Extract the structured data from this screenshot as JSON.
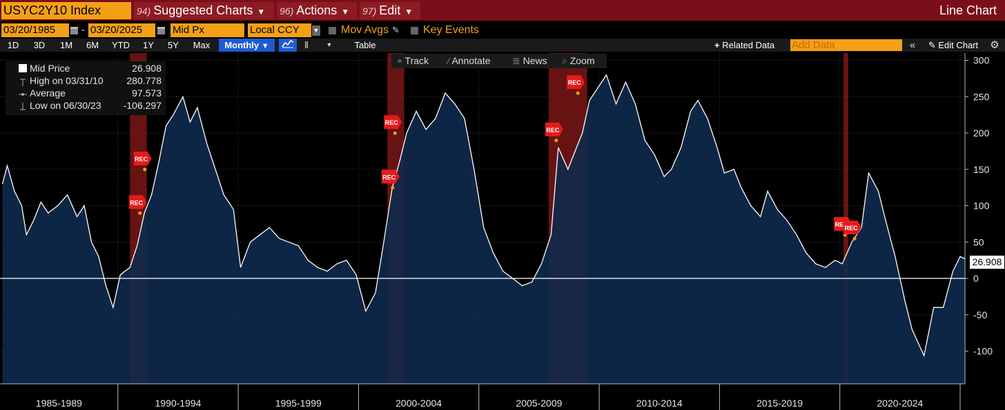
{
  "header": {
    "ticker": "USYC2Y10 Index",
    "menus": [
      {
        "num": "94)",
        "label": "Suggested Charts"
      },
      {
        "num": "96)",
        "label": "Actions"
      },
      {
        "num": "97)",
        "label": "Edit"
      }
    ],
    "view_title": "Line Chart"
  },
  "controls": {
    "start_date": "03/20/1985",
    "end_date": "03/20/2025",
    "date_separator": "-",
    "field": "Mid Px",
    "currency": "Local CCY",
    "mov_avgs_label": "Mov Avgs",
    "key_events_label": "Key Events"
  },
  "ranges": [
    "1D",
    "3D",
    "1M",
    "6M",
    "YTD",
    "1Y",
    "5Y",
    "Max"
  ],
  "frequency": "Monthly",
  "table_label": "Table",
  "related_data_label": "Related Data",
  "add_data_placeholder": "Add Data",
  "edit_chart_label": "Edit Chart",
  "chart_tools": [
    "Track",
    "Annotate",
    "News",
    "Zoom"
  ],
  "legend": {
    "rows": [
      {
        "name": "Mid Price",
        "value": "26.908"
      },
      {
        "name": "High on 03/31/10",
        "value": "280.778"
      },
      {
        "name": "Average",
        "value": "97.573"
      },
      {
        "name": "Low on 06/30/23",
        "value": "-106.297"
      }
    ]
  },
  "last_value_label": "26.908",
  "colors": {
    "accent": "#f3a017",
    "header_bg": "#7a0f19",
    "line": "#ffffff",
    "area": "#0f2a4c",
    "recession": "#8b1a1a",
    "active_button": "#1d5bd1"
  },
  "chart_data": {
    "type": "area",
    "title": "USYC2Y10 Index",
    "ylabel": "",
    "ylim": [
      -145,
      310
    ],
    "yticks": [
      -100,
      -50,
      0,
      50,
      100,
      150,
      200,
      250,
      300
    ],
    "xlim": [
      1985.1,
      2025.2
    ],
    "x_period_labels": [
      "1985-1989",
      "1990-1994",
      "1995-1999",
      "2000-2004",
      "2005-2009",
      "2010-2014",
      "2015-2019",
      "2020-2024"
    ],
    "x_period_boundaries": [
      1985.0,
      1990.0,
      1995.0,
      2000.0,
      2005.0,
      2010.0,
      2015.0,
      2020.0,
      2025.0
    ],
    "series": [
      {
        "values": [
          [
            1985.2,
            130
          ],
          [
            1985.4,
            155
          ],
          [
            1985.7,
            120
          ],
          [
            1986.0,
            100
          ],
          [
            1986.2,
            60
          ],
          [
            1986.5,
            80
          ],
          [
            1986.8,
            105
          ],
          [
            1987.1,
            90
          ],
          [
            1987.5,
            100
          ],
          [
            1987.9,
            115
          ],
          [
            1988.3,
            85
          ],
          [
            1988.6,
            100
          ],
          [
            1988.9,
            50
          ],
          [
            1989.2,
            30
          ],
          [
            1989.5,
            -10
          ],
          [
            1989.8,
            -40
          ],
          [
            1990.1,
            5
          ],
          [
            1990.5,
            15
          ],
          [
            1990.8,
            45
          ],
          [
            1991.1,
            90
          ],
          [
            1991.4,
            115
          ],
          [
            1991.7,
            160
          ],
          [
            1992.0,
            210
          ],
          [
            1992.3,
            225
          ],
          [
            1992.7,
            250
          ],
          [
            1993.0,
            215
          ],
          [
            1993.3,
            235
          ],
          [
            1993.7,
            185
          ],
          [
            1994.0,
            155
          ],
          [
            1994.4,
            115
          ],
          [
            1994.8,
            95
          ],
          [
            1995.1,
            15
          ],
          [
            1995.5,
            50
          ],
          [
            1995.9,
            60
          ],
          [
            1996.3,
            70
          ],
          [
            1996.7,
            55
          ],
          [
            1997.1,
            50
          ],
          [
            1997.5,
            45
          ],
          [
            1997.9,
            25
          ],
          [
            1998.3,
            15
          ],
          [
            1998.7,
            10
          ],
          [
            1999.1,
            20
          ],
          [
            1999.5,
            25
          ],
          [
            1999.9,
            5
          ],
          [
            2000.3,
            -45
          ],
          [
            2000.7,
            -20
          ],
          [
            2001.0,
            40
          ],
          [
            2001.4,
            125
          ],
          [
            2001.7,
            160
          ],
          [
            2002.0,
            200
          ],
          [
            2002.4,
            230
          ],
          [
            2002.8,
            205
          ],
          [
            2003.2,
            220
          ],
          [
            2003.6,
            255
          ],
          [
            2004.0,
            240
          ],
          [
            2004.4,
            220
          ],
          [
            2004.8,
            150
          ],
          [
            2005.2,
            70
          ],
          [
            2005.6,
            35
          ],
          [
            2006.0,
            10
          ],
          [
            2006.4,
            0
          ],
          [
            2006.8,
            -10
          ],
          [
            2007.2,
            -5
          ],
          [
            2007.6,
            20
          ],
          [
            2008.0,
            60
          ],
          [
            2008.3,
            180
          ],
          [
            2008.7,
            150
          ],
          [
            2009.0,
            175
          ],
          [
            2009.3,
            200
          ],
          [
            2009.6,
            245
          ],
          [
            2010.0,
            265
          ],
          [
            2010.3,
            280
          ],
          [
            2010.7,
            240
          ],
          [
            2011.1,
            270
          ],
          [
            2011.5,
            240
          ],
          [
            2011.9,
            190
          ],
          [
            2012.3,
            170
          ],
          [
            2012.7,
            140
          ],
          [
            2013.0,
            150
          ],
          [
            2013.4,
            180
          ],
          [
            2013.8,
            230
          ],
          [
            2014.1,
            245
          ],
          [
            2014.5,
            220
          ],
          [
            2014.9,
            180
          ],
          [
            2015.2,
            145
          ],
          [
            2015.6,
            150
          ],
          [
            2015.9,
            125
          ],
          [
            2016.3,
            100
          ],
          [
            2016.7,
            85
          ],
          [
            2017.0,
            120
          ],
          [
            2017.4,
            95
          ],
          [
            2017.8,
            80
          ],
          [
            2018.2,
            60
          ],
          [
            2018.6,
            35
          ],
          [
            2019.0,
            20
          ],
          [
            2019.4,
            15
          ],
          [
            2019.8,
            25
          ],
          [
            2020.1,
            20
          ],
          [
            2020.5,
            50
          ],
          [
            2020.9,
            70
          ],
          [
            2021.2,
            145
          ],
          [
            2021.6,
            120
          ],
          [
            2021.9,
            80
          ],
          [
            2022.3,
            30
          ],
          [
            2022.7,
            -30
          ],
          [
            2023.0,
            -70
          ],
          [
            2023.5,
            -106.297
          ],
          [
            2023.9,
            -40
          ],
          [
            2024.3,
            -40
          ],
          [
            2024.7,
            10
          ],
          [
            2025.0,
            30
          ],
          [
            2025.2,
            26.908
          ]
        ]
      }
    ],
    "recessions": [
      [
        1990.5,
        1991.2
      ],
      [
        2001.2,
        2001.9
      ],
      [
        2007.9,
        2009.5
      ],
      [
        2020.15,
        2020.35
      ]
    ],
    "event_markers": [
      {
        "label": "REC",
        "x": 1990.8,
        "y": 105
      },
      {
        "label": "REC",
        "x": 1991.0,
        "y": 165
      },
      {
        "label": "REC",
        "x": 2001.3,
        "y": 140
      },
      {
        "label": "REC",
        "x": 2001.4,
        "y": 215
      },
      {
        "label": "REC",
        "x": 2008.1,
        "y": 205
      },
      {
        "label": "REC",
        "x": 2009.0,
        "y": 270
      },
      {
        "label": "REC",
        "x": 2020.1,
        "y": 75
      },
      {
        "label": "REC",
        "x": 2020.5,
        "y": 70
      }
    ],
    "horizontal_line": 0,
    "grid": true,
    "legend_position": "top-left"
  }
}
